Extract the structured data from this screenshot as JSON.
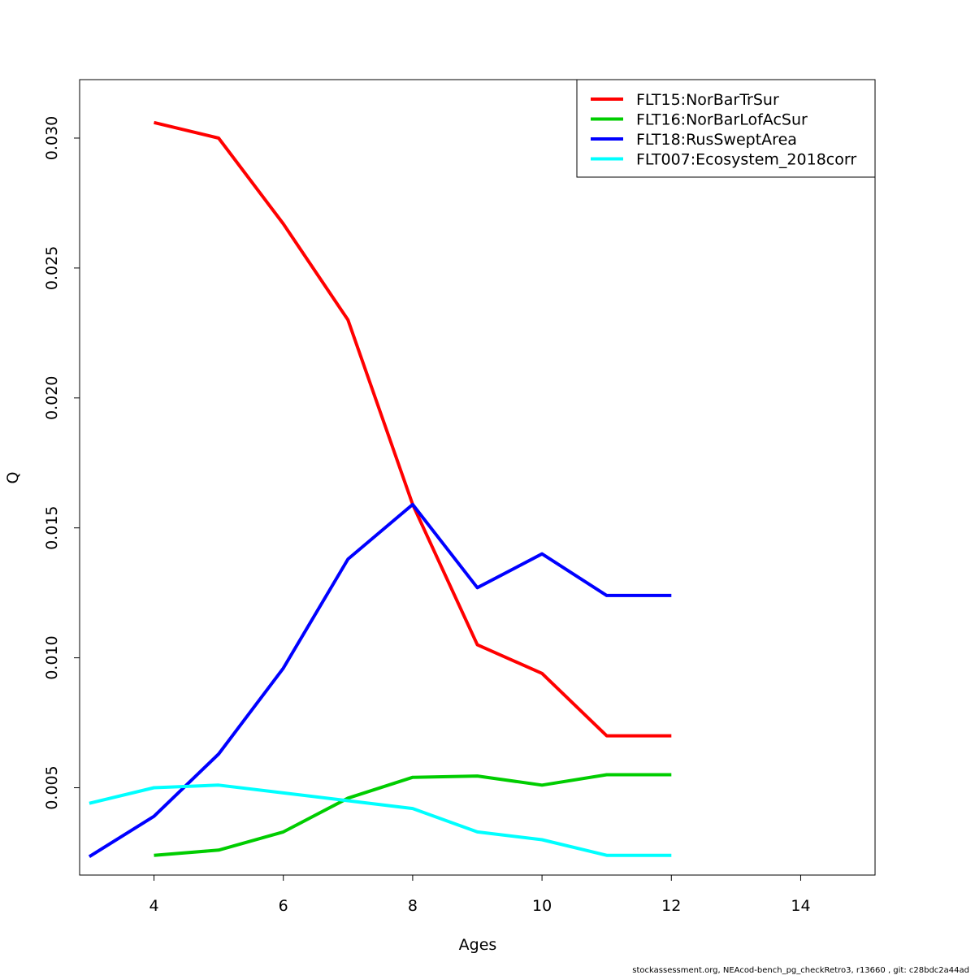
{
  "chart_data": {
    "type": "line",
    "xlabel": "Ages",
    "ylabel": "Q",
    "xlim": [
      2.85,
      15.15
    ],
    "ylim": [
      0.00164,
      0.03225
    ],
    "xticks": [
      4,
      6,
      8,
      10,
      12,
      14
    ],
    "xtick_labels": [
      "4",
      "6",
      "8",
      "10",
      "12",
      "14"
    ],
    "yticks": [
      0.005,
      0.01,
      0.015,
      0.02,
      0.025,
      0.03
    ],
    "ytick_labels": [
      "0.005",
      "0.010",
      "0.015",
      "0.020",
      "0.025",
      "0.030"
    ],
    "grid": false,
    "legend_position": "top-right",
    "series": [
      {
        "name": "FLT15:NorBarTrSur",
        "color": "#ff0000",
        "x": [
          4,
          5,
          6,
          7,
          8,
          9,
          10,
          11,
          12
        ],
        "y": [
          0.0306,
          0.03,
          0.0267,
          0.023,
          0.0159,
          0.0105,
          0.0094,
          0.007,
          0.007
        ]
      },
      {
        "name": "FLT16:NorBarLofAcSur",
        "color": "#00cd00",
        "x": [
          4,
          5,
          6,
          7,
          8,
          9,
          10,
          11,
          12
        ],
        "y": [
          0.0024,
          0.0026,
          0.0033,
          0.0046,
          0.0054,
          0.00545,
          0.0051,
          0.0055,
          0.0055
        ]
      },
      {
        "name": "FLT18:RusSweptArea",
        "color": "#0000ff",
        "x": [
          3,
          4,
          5,
          6,
          7,
          8,
          9,
          10,
          11,
          12
        ],
        "y": [
          0.00235,
          0.0039,
          0.0063,
          0.0096,
          0.0138,
          0.0159,
          0.0127,
          0.014,
          0.0124,
          0.0124
        ]
      },
      {
        "name": "FLT007:Ecosystem_2018corr",
        "color": "#00ffff",
        "x": [
          3,
          4,
          5,
          6,
          7,
          8,
          9,
          10,
          11,
          12
        ],
        "y": [
          0.0044,
          0.005,
          0.0051,
          0.0048,
          0.0045,
          0.0042,
          0.0033,
          0.003,
          0.0024,
          0.0024
        ]
      }
    ]
  },
  "footer": {
    "text": "stockassessment.org, NEAcod-bench_pg_checkRetro3, r13660 , git: c28bdc2a44ad"
  }
}
